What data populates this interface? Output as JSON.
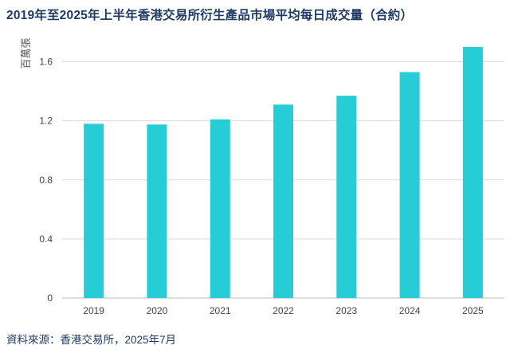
{
  "title": "2019年至2025年上半年香港交易所衍生產品市場平均每日成交量（合約）",
  "source": "資料來源：香港交易所，2025年7月",
  "colors": {
    "bar": "#26ccd6",
    "grid": "#d9d9d9",
    "title": "#1f3b63"
  },
  "chart_data": {
    "type": "bar",
    "title": "2019年至2025年上半年香港交易所衍生產品市場平均每日成交量（合約）",
    "ylabel": "百萬張",
    "xlabel": "",
    "categories": [
      "2019",
      "2020",
      "2021",
      "2022",
      "2023",
      "2024",
      "2025"
    ],
    "values": [
      1.18,
      1.175,
      1.21,
      1.31,
      1.37,
      1.53,
      1.7
    ],
    "ylim": [
      0,
      1.7
    ],
    "yticks": [
      "0",
      "0.4",
      "0.8",
      "1.2",
      "1.6"
    ],
    "grid": true
  }
}
